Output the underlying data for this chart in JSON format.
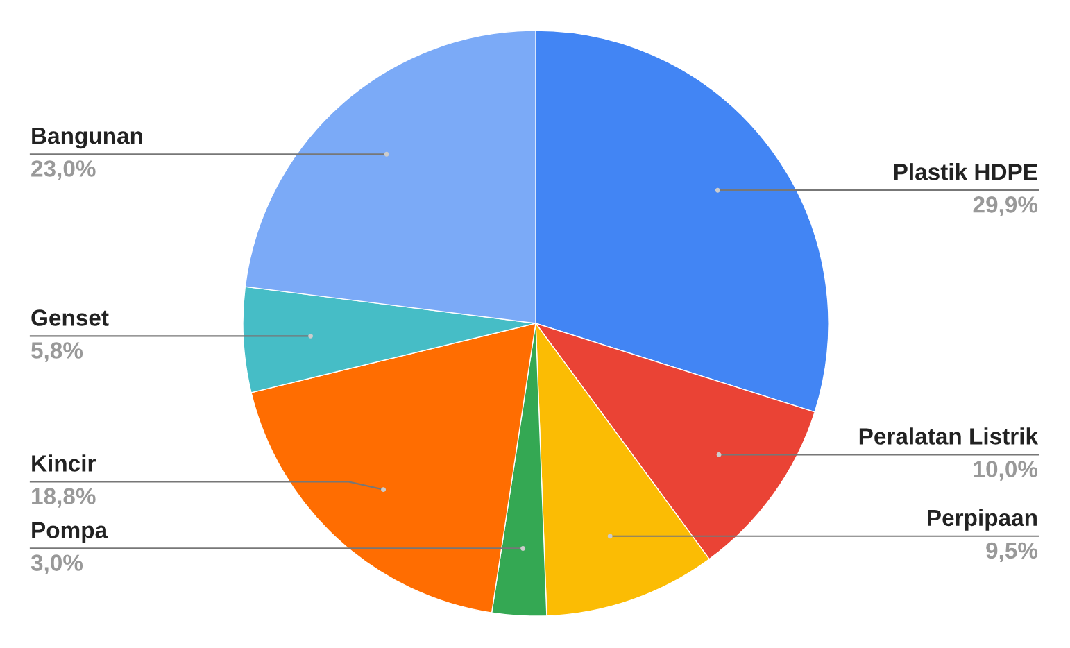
{
  "chart_data": {
    "type": "pie",
    "categories": [
      "Plastik HDPE",
      "Peralatan Listrik",
      "Perpipaan",
      "Pompa",
      "Kincir",
      "Genset",
      "Bangunan"
    ],
    "values": [
      29.9,
      10.0,
      9.5,
      3.0,
      18.8,
      5.8,
      23.0
    ],
    "colors": [
      "#4285f4",
      "#ea4335",
      "#fbbc04",
      "#34a853",
      "#ff6d01",
      "#46bdc6",
      "#7baaf7"
    ],
    "value_labels": [
      "29,9%",
      "10,0%",
      "9,5%",
      "3,0%",
      "18,8%",
      "5,8%",
      "23,0%"
    ]
  }
}
